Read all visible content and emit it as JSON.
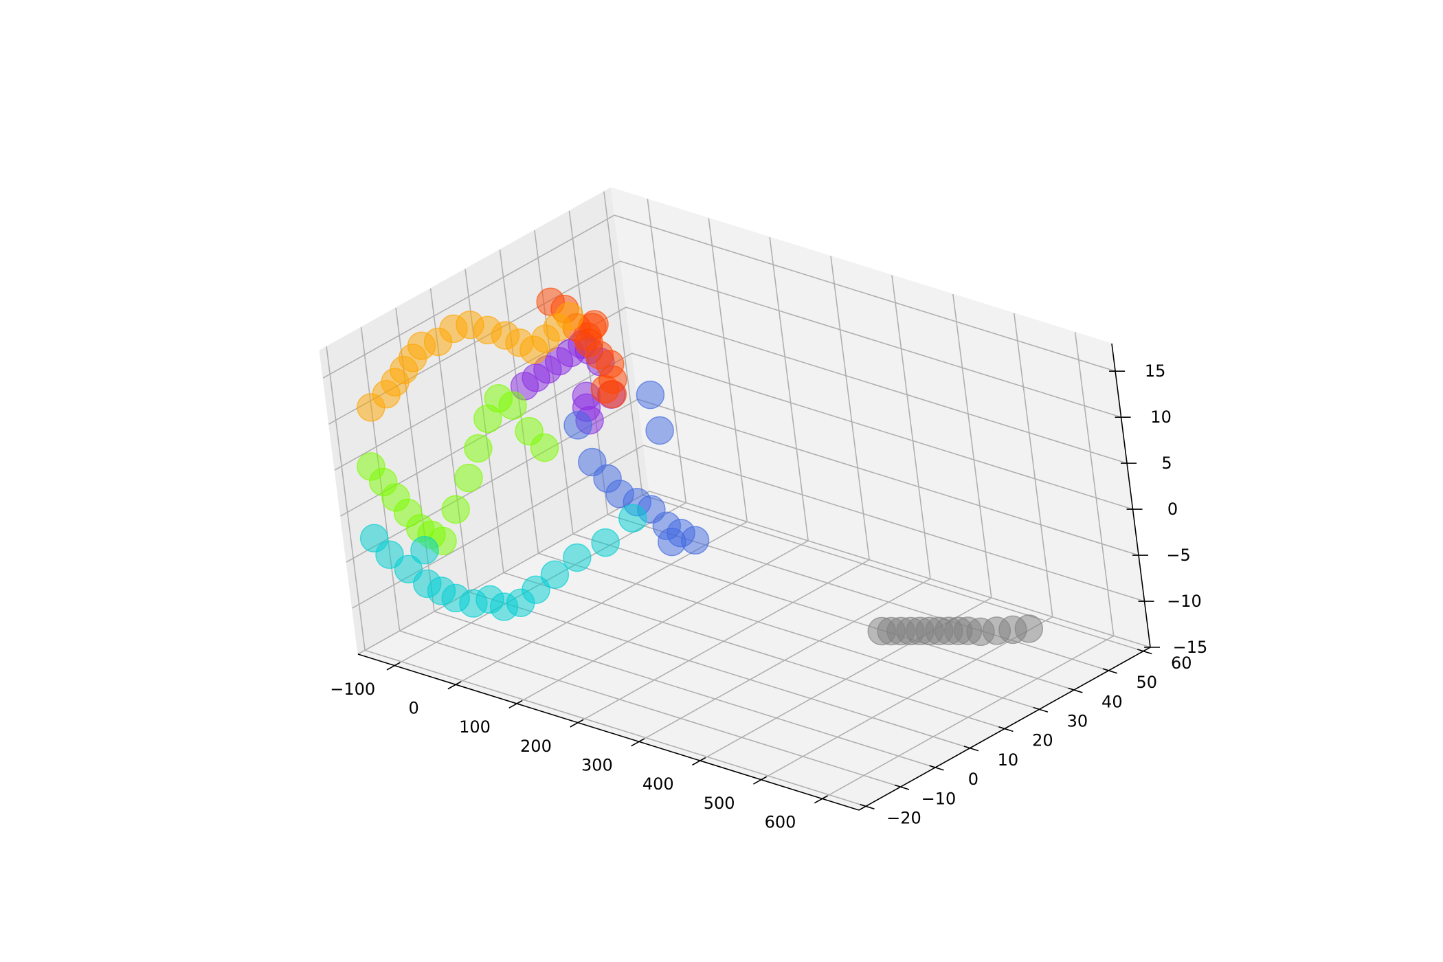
{
  "chart_data": {
    "type": "scatter",
    "projection": "3d",
    "title": "",
    "xlabel": "",
    "ylabel": "",
    "zlabel": "",
    "xlim": [
      -160,
      660
    ],
    "ylim": [
      -22,
      62
    ],
    "zlim": [
      -15,
      18
    ],
    "x_ticks": [
      -100,
      0,
      100,
      200,
      300,
      400,
      500,
      600
    ],
    "y_ticks": [
      -20,
      -10,
      0,
      10,
      20,
      30,
      40,
      50,
      60
    ],
    "z_ticks": [
      -15,
      -10,
      -5,
      0,
      5,
      10,
      15
    ],
    "x_tick_labels": [
      "−100",
      "0",
      "100",
      "200",
      "300",
      "400",
      "500",
      "600"
    ],
    "y_tick_labels": [
      "−20",
      "−10",
      "0",
      "10",
      "20",
      "30",
      "40",
      "50",
      "60"
    ],
    "z_tick_labels": [
      "−15",
      "−10",
      "−5",
      "0",
      "5",
      "10",
      "15"
    ],
    "grid": true,
    "legend": false,
    "marker_alpha": 0.5,
    "colormap": "rainbow",
    "series": [
      {
        "color": "#8A2BE2",
        "points": [
          [
            30,
            2,
            13
          ],
          [
            45,
            3,
            14
          ],
          [
            60,
            4,
            15
          ],
          [
            75,
            5,
            16
          ],
          [
            90,
            6,
            17
          ],
          [
            105,
            7,
            18
          ],
          [
            95,
            8,
            12
          ],
          [
            80,
            10,
            10
          ],
          [
            70,
            12,
            8
          ],
          [
            100,
            14,
            11
          ],
          [
            120,
            9,
            16
          ],
          [
            160,
            0,
            20
          ]
        ]
      },
      {
        "color": "#4169E1",
        "points": [
          [
            30,
            15,
            6
          ],
          [
            40,
            16,
            2
          ],
          [
            50,
            18,
            0
          ],
          [
            55,
            20,
            -2
          ],
          [
            70,
            22,
            -3
          ],
          [
            80,
            24,
            -4
          ],
          [
            90,
            26,
            -6
          ],
          [
            100,
            28,
            -7
          ],
          [
            110,
            30,
            -8
          ],
          [
            160,
            15,
            12
          ],
          [
            200,
            10,
            10
          ],
          [
            70,
            30,
            -9
          ]
        ]
      },
      {
        "color": "#00CED1",
        "points": [
          [
            -120,
            -20,
            -2
          ],
          [
            -110,
            -18,
            -4
          ],
          [
            -100,
            -15,
            -6
          ],
          [
            -90,
            -12,
            -8
          ],
          [
            -80,
            -10,
            -9
          ],
          [
            -70,
            -8,
            -10
          ],
          [
            -60,
            -5,
            -11
          ],
          [
            -50,
            -2,
            -11
          ],
          [
            -40,
            0,
            -12
          ],
          [
            -30,
            3,
            -12
          ],
          [
            -20,
            6,
            -11
          ],
          [
            -10,
            10,
            -10
          ],
          [
            0,
            15,
            -9
          ],
          [
            20,
            20,
            -8
          ],
          [
            40,
            25,
            -6
          ],
          [
            -100,
            -10,
            -5
          ]
        ]
      },
      {
        "color": "#7CFC00",
        "points": [
          [
            -110,
            -20,
            6
          ],
          [
            -105,
            -18,
            4
          ],
          [
            -100,
            -16,
            2
          ],
          [
            -95,
            -14,
            0
          ],
          [
            -90,
            -12,
            -2
          ],
          [
            -85,
            -10,
            -3
          ],
          [
            -80,
            -8,
            -4
          ],
          [
            -70,
            -5,
            -1
          ],
          [
            -60,
            -2,
            2
          ],
          [
            -50,
            0,
            5
          ],
          [
            -40,
            2,
            8
          ],
          [
            -30,
            4,
            10
          ],
          [
            -20,
            6,
            9
          ],
          [
            -10,
            8,
            6
          ],
          [
            0,
            10,
            4
          ]
        ]
      },
      {
        "color": "#FFA500",
        "points": [
          [
            -100,
            -15,
            13
          ],
          [
            -95,
            -13,
            14
          ],
          [
            -90,
            -11,
            15
          ],
          [
            -85,
            -9,
            16
          ],
          [
            -80,
            -7,
            17
          ],
          [
            -70,
            -4,
            17
          ],
          [
            -60,
            -1,
            18
          ],
          [
            -50,
            2,
            18
          ],
          [
            -40,
            5,
            17
          ],
          [
            -30,
            8,
            16
          ],
          [
            -20,
            10,
            15
          ],
          [
            -10,
            12,
            14
          ],
          [
            0,
            14,
            15
          ],
          [
            10,
            16,
            16
          ],
          [
            20,
            18,
            17
          ],
          [
            -110,
            -18,
            12
          ]
        ]
      },
      {
        "color": "#FF4500",
        "points": [
          [
            10,
            15,
            19
          ],
          [
            20,
            17,
            18
          ],
          [
            30,
            18,
            16
          ],
          [
            40,
            19,
            15
          ],
          [
            50,
            20,
            13
          ],
          [
            60,
            21,
            12
          ],
          [
            55,
            22,
            10
          ],
          [
            45,
            23,
            8
          ],
          [
            80,
            15,
            18
          ],
          [
            120,
            8,
            20
          ],
          [
            35,
            20,
            14
          ],
          [
            65,
            18,
            10
          ]
        ]
      },
      {
        "color": "#808080",
        "points": [
          [
            440,
            25,
            -10
          ],
          [
            450,
            26,
            -10
          ],
          [
            460,
            27,
            -10
          ],
          [
            470,
            28,
            -10
          ],
          [
            480,
            29,
            -10
          ],
          [
            490,
            30,
            -10
          ],
          [
            500,
            31,
            -10
          ],
          [
            510,
            32,
            -10
          ],
          [
            520,
            33,
            -10
          ],
          [
            530,
            34,
            -10
          ],
          [
            545,
            35,
            -10
          ],
          [
            560,
            37,
            -10
          ],
          [
            575,
            39,
            -10
          ],
          [
            590,
            41,
            -10
          ]
        ]
      }
    ]
  }
}
